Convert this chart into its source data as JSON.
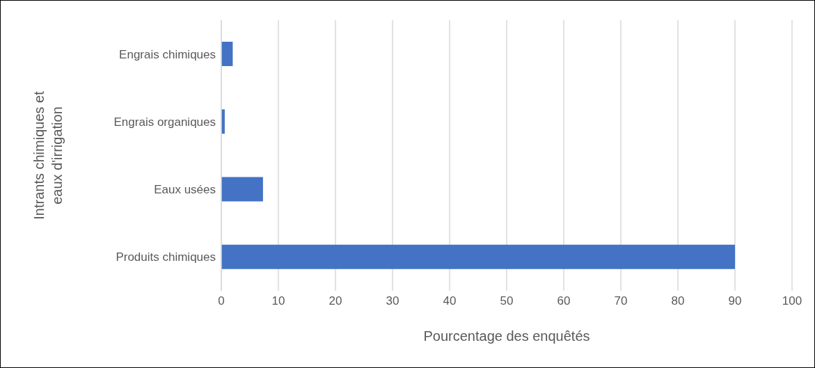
{
  "chart_data": {
    "type": "bar",
    "orientation": "horizontal",
    "categories": [
      "Engrais chimiques",
      "Engrais organiques",
      "Eaux usées",
      "Produits chimiques"
    ],
    "values": [
      2.0,
      0.6,
      7.3,
      90.0
    ],
    "color": "#4472c4",
    "xlim": [
      0,
      100
    ],
    "xticks": [
      0,
      10,
      20,
      30,
      40,
      50,
      60,
      70,
      80,
      90,
      100
    ],
    "grid": "x",
    "xlabel": "Pourcentage des enquêtés",
    "ylabel": "Intrants chimiques et eaux d'irrigation"
  }
}
